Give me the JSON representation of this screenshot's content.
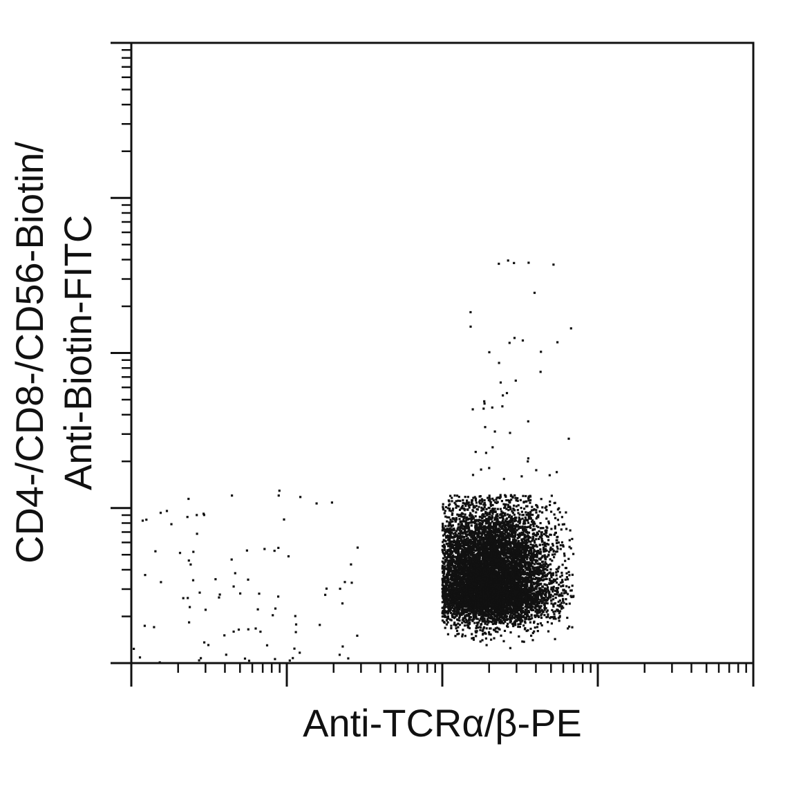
{
  "chart_data": {
    "type": "scatter",
    "title": "",
    "xlabel": "Anti-TCRα/β-PE",
    "ylabel_lines": [
      "CD4-/CD8-/CD56-Biotin/",
      "Anti-Biotin-FITC"
    ],
    "x_scale": "log",
    "y_scale": "log",
    "xlim": [
      0.1,
      1000
    ],
    "ylim": [
      0.1,
      1000
    ],
    "decades": 4,
    "tick_labels_shown": false,
    "grid": false,
    "point_color": "#111111",
    "populations": [
      {
        "description": "dense main cluster",
        "x_range": [
          10,
          70
        ],
        "y_range": [
          0.1,
          1.2
        ],
        "center": [
          20,
          0.3
        ],
        "approx_events": 9000
      },
      {
        "description": "sparse negative events (low x)",
        "x_range": [
          0.1,
          3
        ],
        "y_range": [
          0.1,
          1.3
        ],
        "approx_events": 90
      },
      {
        "description": "sparse high-y events",
        "x_range": [
          15,
          70
        ],
        "y_range": [
          1.5,
          45
        ],
        "approx_events": 45
      }
    ]
  }
}
